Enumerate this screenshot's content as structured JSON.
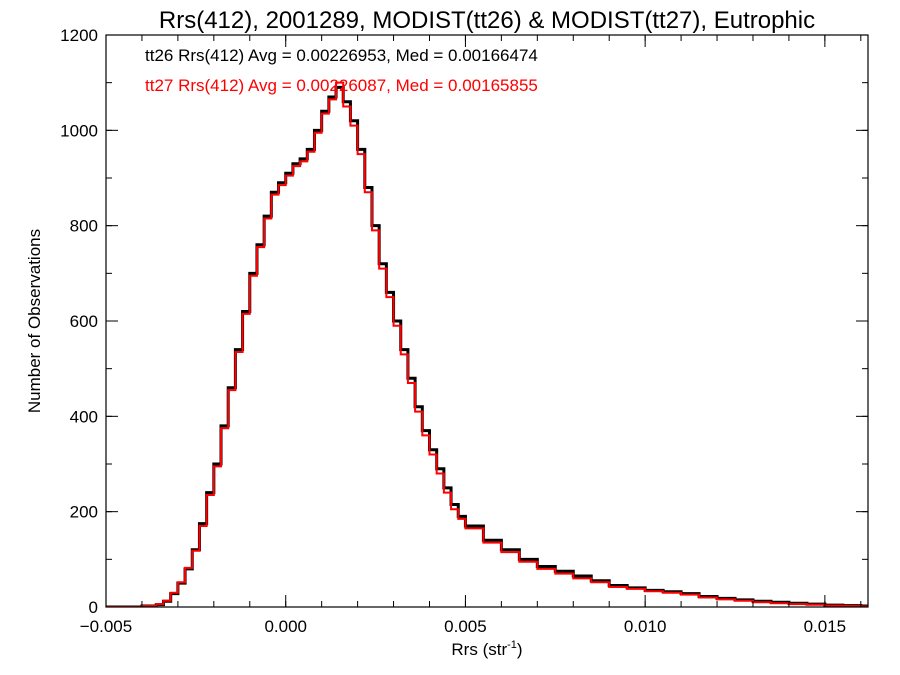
{
  "chart_data": {
    "type": "histogram",
    "title": "Rrs(412), 2001289, MODIST(tt26) & MODIST(tt27), Eutrophic",
    "xlabel_main": "Rrs (str",
    "xlabel_sup": "-1",
    "xlabel_tail": ")",
    "ylabel": "Number of Observations",
    "xlim": [
      -0.005,
      0.0162
    ],
    "ylim": [
      0,
      1200
    ],
    "x_ticks": [
      -0.005,
      0.0,
      0.005,
      0.01,
      0.015
    ],
    "x_tick_labels": [
      "−0.005",
      "0.000",
      "0.005",
      "0.010",
      "0.015"
    ],
    "y_ticks": [
      0,
      200,
      400,
      600,
      800,
      1000,
      1200
    ],
    "y_tick_labels": [
      "0",
      "200",
      "400",
      "600",
      "800",
      "1000",
      "1200"
    ],
    "annotations": [
      {
        "text": "tt26 Rrs(412) Avg = 0.00226953, Med = 0.00166474",
        "color": "#000000"
      },
      {
        "text": "tt27 Rrs(412) Avg = 0.00226087, Med = 0.00165855",
        "color": "#ff0000"
      }
    ],
    "series": [
      {
        "name": "tt26",
        "color": "#000000",
        "x": [
          -0.005,
          -0.0045,
          -0.004,
          -0.0036,
          -0.0034,
          -0.0032,
          -0.003,
          -0.0028,
          -0.0026,
          -0.0024,
          -0.0022,
          -0.002,
          -0.0018,
          -0.0016,
          -0.0014,
          -0.0012,
          -0.001,
          -0.0008,
          -0.0006,
          -0.0004,
          -0.0002,
          0.0,
          0.0002,
          0.0004,
          0.0006,
          0.0008,
          0.001,
          0.0012,
          0.0014,
          0.0016,
          0.0018,
          0.002,
          0.0022,
          0.0024,
          0.0026,
          0.0028,
          0.003,
          0.0032,
          0.0034,
          0.0036,
          0.0038,
          0.004,
          0.0042,
          0.0044,
          0.0046,
          0.0048,
          0.005,
          0.0055,
          0.006,
          0.0065,
          0.007,
          0.0075,
          0.008,
          0.0085,
          0.009,
          0.0095,
          0.01,
          0.0105,
          0.011,
          0.0115,
          0.012,
          0.0125,
          0.013,
          0.0135,
          0.014,
          0.0145,
          0.015,
          0.0155,
          0.016,
          0.0162
        ],
        "y": [
          0,
          0,
          2,
          5,
          12,
          28,
          50,
          80,
          120,
          175,
          240,
          300,
          380,
          460,
          540,
          620,
          700,
          760,
          820,
          870,
          890,
          910,
          930,
          940,
          960,
          1000,
          1040,
          1070,
          1090,
          1060,
          1020,
          960,
          880,
          800,
          720,
          660,
          600,
          540,
          480,
          420,
          370,
          330,
          290,
          250,
          215,
          190,
          170,
          140,
          120,
          100,
          85,
          75,
          65,
          55,
          45,
          40,
          35,
          32,
          28,
          22,
          18,
          15,
          12,
          10,
          8,
          6,
          4,
          3,
          2,
          1
        ]
      },
      {
        "name": "tt27",
        "color": "#ff0000",
        "x": [
          -0.005,
          -0.0045,
          -0.004,
          -0.0036,
          -0.0034,
          -0.0032,
          -0.003,
          -0.0028,
          -0.0026,
          -0.0024,
          -0.0022,
          -0.002,
          -0.0018,
          -0.0016,
          -0.0014,
          -0.0012,
          -0.001,
          -0.0008,
          -0.0006,
          -0.0004,
          -0.0002,
          0.0,
          0.0002,
          0.0004,
          0.0006,
          0.0008,
          0.001,
          0.0012,
          0.0014,
          0.0016,
          0.0018,
          0.002,
          0.0022,
          0.0024,
          0.0026,
          0.0028,
          0.003,
          0.0032,
          0.0034,
          0.0036,
          0.0038,
          0.004,
          0.0042,
          0.0044,
          0.0046,
          0.0048,
          0.005,
          0.0055,
          0.006,
          0.0065,
          0.007,
          0.0075,
          0.008,
          0.0085,
          0.009,
          0.0095,
          0.01,
          0.0105,
          0.011,
          0.0115,
          0.012,
          0.0125,
          0.013,
          0.0135,
          0.014,
          0.0145,
          0.015,
          0.0155,
          0.016,
          0.0162
        ],
        "y": [
          0,
          0,
          2,
          6,
          13,
          30,
          52,
          82,
          118,
          170,
          235,
          295,
          375,
          455,
          535,
          615,
          695,
          755,
          815,
          865,
          885,
          905,
          925,
          935,
          955,
          995,
          1035,
          1065,
          1100,
          1050,
          1010,
          950,
          870,
          790,
          710,
          650,
          590,
          530,
          470,
          410,
          360,
          320,
          280,
          240,
          205,
          185,
          165,
          135,
          115,
          95,
          80,
          70,
          60,
          52,
          42,
          38,
          33,
          30,
          26,
          20,
          16,
          13,
          10,
          8,
          6,
          5,
          3,
          2,
          1,
          1
        ]
      }
    ]
  }
}
